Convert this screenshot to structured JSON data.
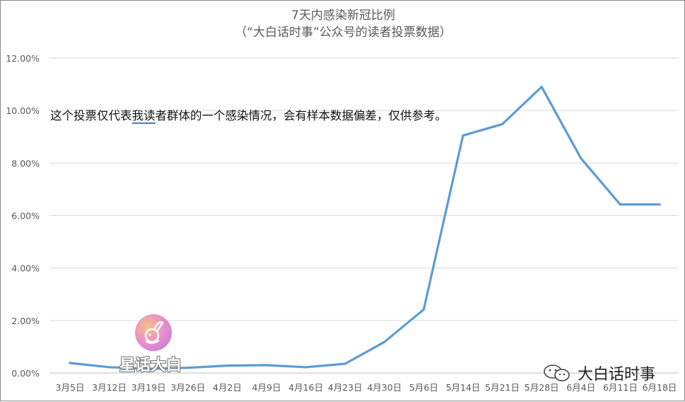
{
  "chart_data": {
    "type": "line",
    "title": [
      "7天内感染新冠比例",
      "（“大白话时事”公众号的读者投票数据）"
    ],
    "categories": [
      "3月5日",
      "3月12日",
      "3月19日",
      "3月26日",
      "4月2日",
      "4月9日",
      "4月16日",
      "4月23日",
      "4月30日",
      "5月6日",
      "5月14日",
      "5月21日",
      "5月28日",
      "6月4日",
      "6月11日",
      "6月18日"
    ],
    "series": [
      {
        "values": [
          0.38,
          0.22,
          0.16,
          0.2,
          0.28,
          0.3,
          0.22,
          0.35,
          1.18,
          2.42,
          9.05,
          9.48,
          10.9,
          8.18,
          6.42,
          6.42
        ]
      }
    ],
    "yticks": [
      "0.00%",
      "2.00%",
      "4.00%",
      "6.00%",
      "8.00%",
      "10.00%",
      "12.00%"
    ],
    "ylim": [
      0,
      12
    ],
    "xlabel": "",
    "ylabel": "",
    "grid": true,
    "legend": "none",
    "line_color": "#5b9bd5"
  },
  "annotation": {
    "before": "这个投票仅代表",
    "underlined": "我读",
    "after": "者群体的一个感染情况，会有样本数据偏差，仅供参考。"
  },
  "watermark": {
    "badge_text": "星话大白"
  },
  "wechat": {
    "account": "大白话时事"
  }
}
